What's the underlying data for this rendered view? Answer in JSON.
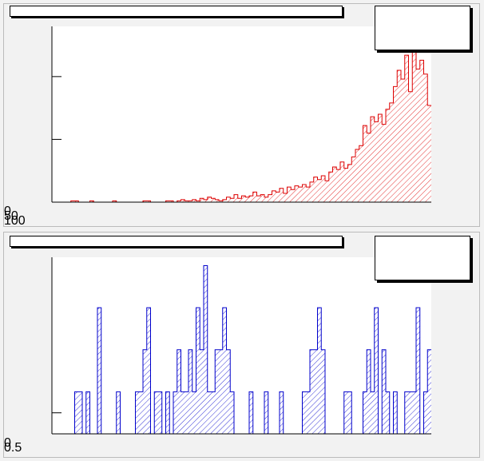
{
  "chart_data": [
    {
      "type": "histogram",
      "color": "#dd0000",
      "hatch": true,
      "bins": [
        0,
        1,
        2,
        3,
        4,
        5,
        6,
        7,
        8,
        9,
        10,
        11,
        12,
        13,
        14,
        15,
        16,
        17,
        18,
        19,
        20,
        21,
        22,
        23,
        24,
        25,
        26,
        27,
        28,
        29,
        30,
        31,
        32,
        33,
        34,
        35,
        36,
        37,
        38,
        39,
        40,
        41,
        42,
        43,
        44,
        45,
        46,
        47,
        48,
        49,
        50,
        51,
        52,
        53,
        54,
        55,
        56,
        57,
        58,
        59,
        60,
        61,
        62,
        63,
        64,
        65,
        66,
        67,
        68,
        69,
        70,
        71,
        72,
        73,
        74,
        75,
        76,
        77,
        78,
        79,
        80,
        81,
        82,
        83,
        84,
        85,
        86,
        87,
        88,
        89,
        90,
        91,
        92,
        93,
        94,
        95,
        96,
        97,
        98,
        99,
        100
      ],
      "values": [
        0,
        0,
        0,
        0,
        0,
        1,
        1,
        0,
        0,
        0,
        1,
        0,
        0,
        0,
        0,
        0,
        1,
        0,
        0,
        0,
        0,
        0,
        0,
        0,
        1,
        1,
        0,
        0,
        0,
        0,
        1,
        1,
        0,
        1,
        2,
        1,
        1,
        2,
        1,
        3,
        2,
        4,
        3,
        2,
        1,
        2,
        4,
        3,
        6,
        3,
        5,
        4,
        5,
        8,
        5,
        6,
        4,
        6,
        9,
        8,
        11,
        7,
        12,
        10,
        13,
        12,
        14,
        12,
        16,
        20,
        18,
        21,
        17,
        24,
        28,
        26,
        32,
        27,
        30,
        36,
        42,
        45,
        61,
        55,
        68,
        64,
        70,
        62,
        74,
        79,
        92,
        105,
        98,
        117,
        88,
        121,
        106,
        113,
        102,
        77
      ],
      "xlim": [
        0,
        100
      ],
      "ylim": [
        0,
        140
      ],
      "yticks": [
        0,
        50,
        100
      ]
    },
    {
      "type": "histogram",
      "color": "#0000cc",
      "hatch": true,
      "bins": [
        0,
        1,
        2,
        3,
        4,
        5,
        6,
        7,
        8,
        9,
        10,
        11,
        12,
        13,
        14,
        15,
        16,
        17,
        18,
        19,
        20,
        21,
        22,
        23,
        24,
        25,
        26,
        27,
        28,
        29,
        30,
        31,
        32,
        33,
        34,
        35,
        36,
        37,
        38,
        39,
        40,
        41,
        42,
        43,
        44,
        45,
        46,
        47,
        48,
        49,
        50,
        51,
        52,
        53,
        54,
        55,
        56,
        57,
        58,
        59,
        60,
        61,
        62,
        63,
        64,
        65,
        66,
        67,
        68,
        69,
        70,
        71,
        72,
        73,
        74,
        75,
        76,
        77,
        78,
        79,
        80,
        81,
        82,
        83,
        84,
        85,
        86,
        87,
        88,
        89,
        90,
        91,
        92,
        93,
        94,
        95,
        96,
        97,
        98,
        99,
        100
      ],
      "values": [
        0,
        0,
        0,
        0,
        0,
        0,
        1,
        1,
        0,
        1,
        0,
        0,
        3,
        0,
        0,
        0,
        0,
        1,
        0,
        0,
        0,
        0,
        1,
        1,
        2,
        3,
        0,
        1,
        1,
        0,
        1,
        0,
        1,
        2,
        1,
        1,
        2,
        1,
        3,
        2,
        4,
        1,
        1,
        2,
        2,
        3,
        2,
        1,
        0,
        0,
        0,
        0,
        1,
        0,
        0,
        0,
        1,
        0,
        0,
        0,
        1,
        0,
        0,
        0,
        0,
        0,
        1,
        1,
        2,
        2,
        3,
        2,
        0,
        0,
        0,
        0,
        0,
        1,
        1,
        0,
        0,
        0,
        1,
        2,
        1,
        3,
        0,
        2,
        1,
        0,
        1,
        0,
        0,
        1,
        1,
        1,
        3,
        0,
        1,
        2
      ],
      "xlim": [
        0,
        100
      ],
      "ylim": [
        0,
        4.2
      ],
      "yticks": [
        0,
        0.5
      ]
    }
  ]
}
